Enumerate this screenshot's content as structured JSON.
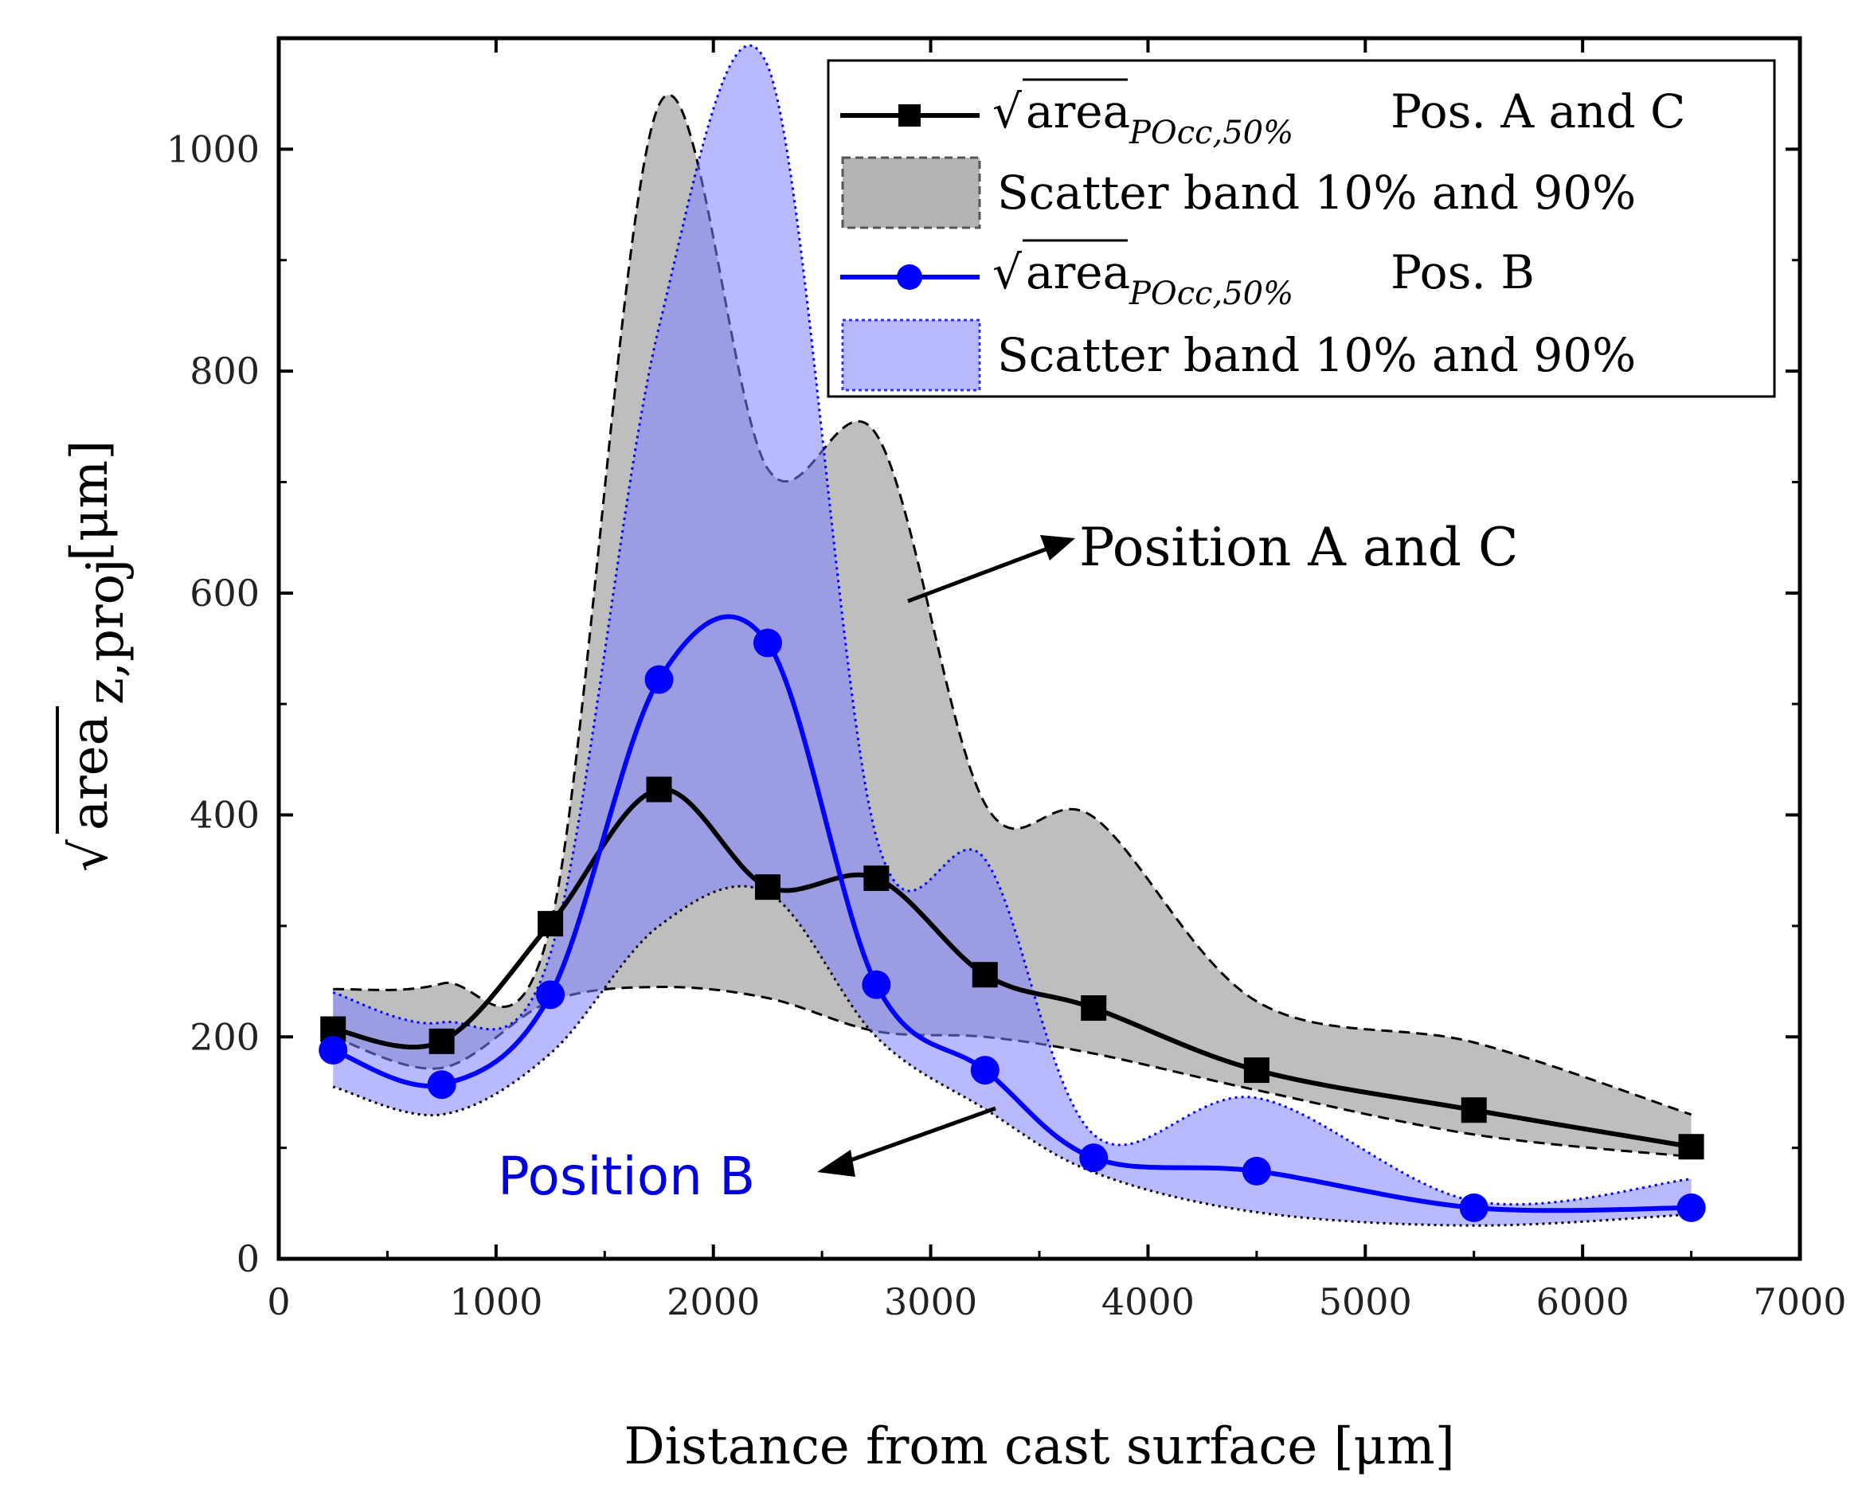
{
  "chart_data": {
    "type": "line",
    "xlabel": "Distance from cast surface [μm]",
    "ylabel": {
      "radical": "area",
      "subscript": "z,proj",
      "unit": "[μm]"
    },
    "xlim": [
      0,
      7000
    ],
    "ylim": [
      0,
      1100
    ],
    "xticks": [
      0,
      1000,
      2000,
      3000,
      4000,
      5000,
      6000,
      7000
    ],
    "yticks": [
      0,
      200,
      400,
      600,
      800,
      1000
    ],
    "grid": false,
    "legend_position": "top-right",
    "series": [
      {
        "name": "area_POcc,50% Pos. A and C",
        "color": "#000000",
        "marker": "square",
        "x": [
          250,
          750,
          1250,
          1750,
          2250,
          2750,
          3250,
          3750,
          4500,
          5500,
          6500
        ],
        "values": [
          207,
          196,
          302,
          423,
          335,
          343,
          256,
          226,
          170,
          134,
          101
        ]
      },
      {
        "name": "area_POcc,50% Pos. B",
        "color": "#0000ff",
        "marker": "circle",
        "x": [
          250,
          750,
          1250,
          1750,
          2250,
          2750,
          3250,
          3750,
          4500,
          5500,
          6500
        ],
        "values": [
          188,
          157,
          238,
          522,
          555,
          247,
          170,
          91,
          79,
          46,
          46
        ]
      }
    ],
    "bands": [
      {
        "name": "Scatter band 10% and 90% (Pos. A and C)",
        "fill": "#b3b3b3",
        "stroke": "#000000",
        "style": "dashed",
        "x": [
          250,
          750,
          1250,
          1750,
          2250,
          2750,
          3250,
          3750,
          4500,
          5500,
          6500
        ],
        "upper": [
          243,
          248,
          300,
          1040,
          712,
          743,
          410,
          398,
          232,
          195,
          130
        ],
        "lower": [
          200,
          172,
          232,
          245,
          235,
          205,
          200,
          185,
          152,
          112,
          92
        ]
      },
      {
        "name": "Scatter band 10% and 90% (Pos. B)",
        "fill": "#8080ff",
        "stroke": "#0000ff",
        "style": "dotted",
        "x": [
          250,
          750,
          1250,
          1750,
          2250,
          2750,
          3250,
          3750,
          4500,
          5500,
          6500
        ],
        "upper": [
          240,
          213,
          275,
          840,
          1075,
          380,
          360,
          112,
          145,
          52,
          72
        ],
        "lower": [
          155,
          130,
          185,
          300,
          330,
          200,
          135,
          78,
          42,
          30,
          40
        ]
      }
    ],
    "legend": [
      {
        "main": "area",
        "sub": "POcc,50%",
        "tail": "Pos. A and C"
      },
      {
        "text": "Scatter band 10% and 90%"
      },
      {
        "main": "area",
        "sub": "POcc,50%",
        "tail": "Pos. B"
      },
      {
        "text": "Scatter band 10% and 90%"
      }
    ],
    "annotations": [
      {
        "text": "Position A and C",
        "color": "#000000"
      },
      {
        "text": "Position B",
        "color": "#0000dd"
      }
    ]
  }
}
